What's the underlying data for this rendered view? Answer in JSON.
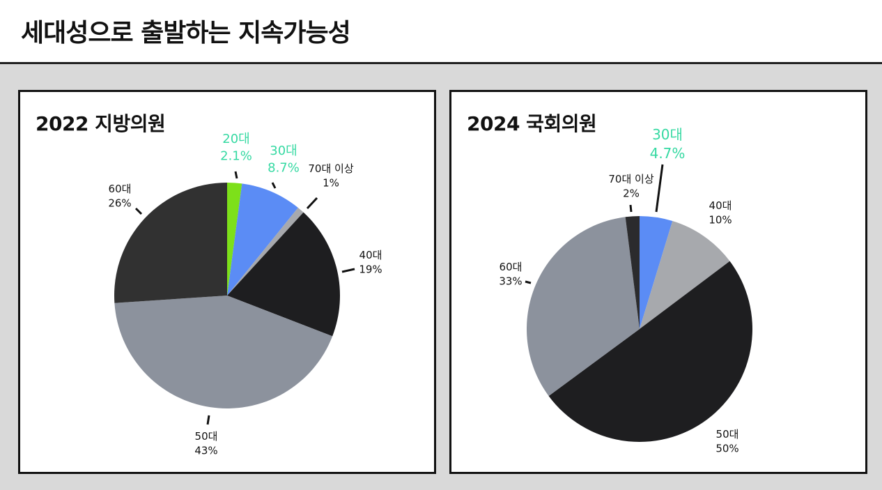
{
  "title": "세대성으로 출발하는 지속가능성",
  "colors": {
    "highlight_text": "#35d9a2"
  },
  "chart_data": [
    {
      "type": "pie",
      "title": "2022 지방의원",
      "slices": [
        {
          "label": "20대",
          "pct_label": "2.1%",
          "value": 2.1,
          "color": "#7de01a",
          "highlight": true
        },
        {
          "label": "30대",
          "pct_label": "8.7%",
          "value": 8.7,
          "color": "#5b8cf5",
          "highlight": true
        },
        {
          "label": "70대 이상",
          "pct_label": "1%",
          "value": 1,
          "color": "#a7a9ad",
          "highlight": false
        },
        {
          "label": "40대",
          "pct_label": "19%",
          "value": 19,
          "color": "#1e1e20",
          "highlight": false
        },
        {
          "label": "50대",
          "pct_label": "43%",
          "value": 43,
          "color": "#8c929d",
          "highlight": false
        },
        {
          "label": "60대",
          "pct_label": "26%",
          "value": 26,
          "color": "#313131",
          "highlight": false
        }
      ]
    },
    {
      "type": "pie",
      "title": "2024 국회의원",
      "slices": [
        {
          "label": "30대",
          "pct_label": "4.7%",
          "value": 4.7,
          "color": "#5b8cf5",
          "highlight": true
        },
        {
          "label": "40대",
          "pct_label": "10%",
          "value": 10,
          "color": "#a7a9ad",
          "highlight": false
        },
        {
          "label": "50대",
          "pct_label": "50%",
          "value": 50,
          "color": "#1e1e20",
          "highlight": false
        },
        {
          "label": "60대",
          "pct_label": "33%",
          "value": 33,
          "color": "#8c929d",
          "highlight": false
        },
        {
          "label": "70대 이상",
          "pct_label": "2%",
          "value": 2,
          "color": "#2b2b2d",
          "highlight": false
        }
      ]
    }
  ]
}
